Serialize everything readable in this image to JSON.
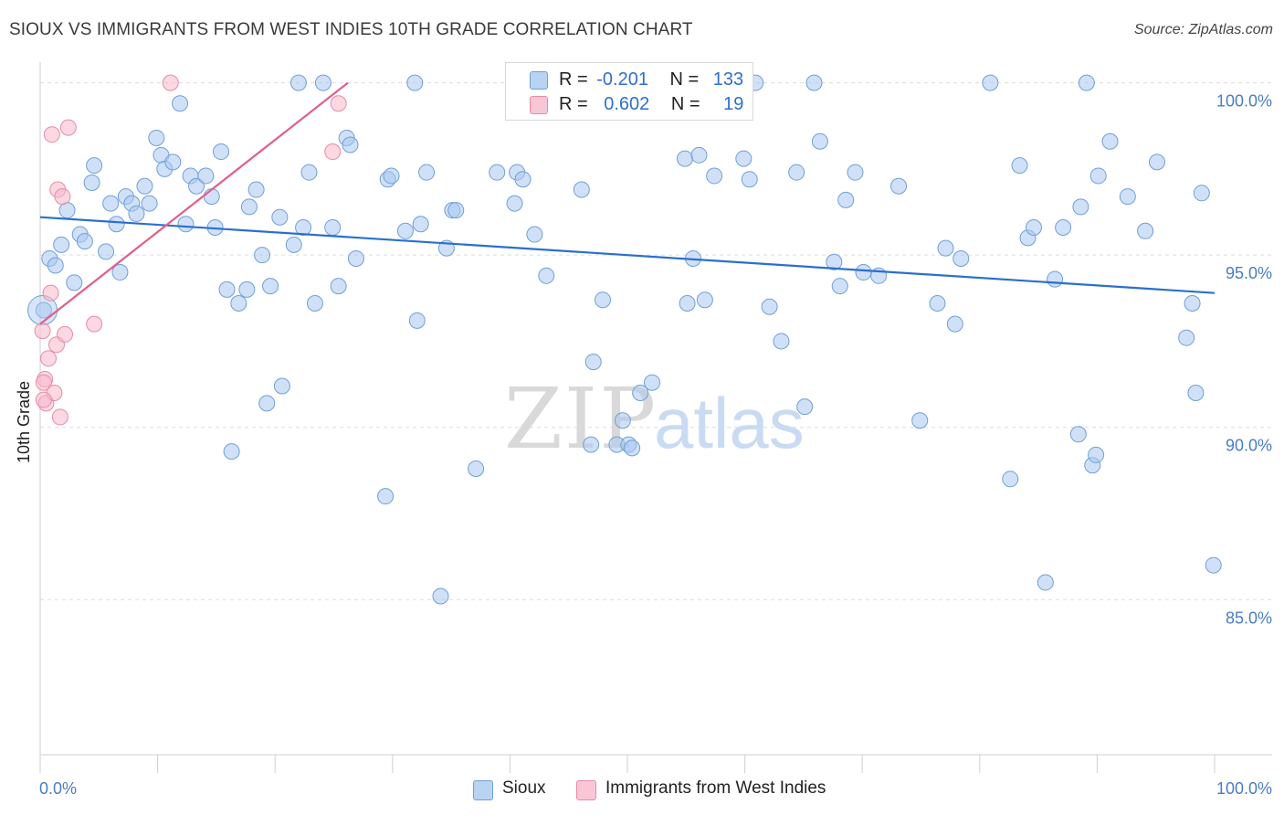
{
  "title": "SIOUX VS IMMIGRANTS FROM WEST INDIES 10TH GRADE CORRELATION CHART",
  "source": "Source: ZipAtlas.com",
  "watermark": {
    "zip": "ZIP",
    "atlas": "atlas"
  },
  "legend": {
    "sioux": {
      "r_label": "R =",
      "r_value": "-0.201",
      "n_label": "N =",
      "n_value": "133"
    },
    "westindies": {
      "r_label": "R =",
      "r_value": "0.602",
      "n_label": "N =",
      "n_value": "19"
    }
  },
  "bottom_legend": {
    "sioux": "Sioux",
    "westindies": "Immigrants from West Indies"
  },
  "colors": {
    "sioux_fill": "#a9c8f0",
    "sioux_stroke": "#6f9fd8",
    "sioux_line": "#2a6fcf",
    "wi_fill": "#f7b8cb",
    "wi_stroke": "#e88aa8",
    "wi_line": "#e0608a",
    "tick_text": "#4a7cc7",
    "grid": "#dcdcdc"
  },
  "chart_data": {
    "type": "scatter",
    "title": "SIOUX VS IMMIGRANTS FROM WEST INDIES 10TH GRADE CORRELATION CHART",
    "xlabel": "",
    "ylabel": "10th Grade",
    "xlim": [
      0,
      100
    ],
    "ylim": [
      80.5,
      100.6
    ],
    "x_tick_labels": [
      "0.0%",
      "100.0%"
    ],
    "y_ticks": [
      100,
      95,
      90,
      85
    ],
    "y_tick_labels": [
      "100.0%",
      "95.0%",
      "90.0%",
      "85.0%"
    ],
    "grid": true,
    "legend_position": "top-center",
    "series": [
      {
        "name": "Sioux",
        "points": [
          [
            0.3,
            93.4
          ],
          [
            0.8,
            94.9
          ],
          [
            1.3,
            94.7
          ],
          [
            1.8,
            95.3
          ],
          [
            2.3,
            96.3
          ],
          [
            2.9,
            94.2
          ],
          [
            3.4,
            95.6
          ],
          [
            3.8,
            95.4
          ],
          [
            4.4,
            97.1
          ],
          [
            4.6,
            97.6
          ],
          [
            5.6,
            95.1
          ],
          [
            6.0,
            96.5
          ],
          [
            6.5,
            95.9
          ],
          [
            6.8,
            94.5
          ],
          [
            7.3,
            96.7
          ],
          [
            7.8,
            96.5
          ],
          [
            8.2,
            96.2
          ],
          [
            8.9,
            97.0
          ],
          [
            9.3,
            96.5
          ],
          [
            9.9,
            98.4
          ],
          [
            10.3,
            97.9
          ],
          [
            10.6,
            97.5
          ],
          [
            11.3,
            97.7
          ],
          [
            11.9,
            99.4
          ],
          [
            12.4,
            95.9
          ],
          [
            12.8,
            97.3
          ],
          [
            13.3,
            97.0
          ],
          [
            14.1,
            97.3
          ],
          [
            14.6,
            96.7
          ],
          [
            14.9,
            95.8
          ],
          [
            15.4,
            98.0
          ],
          [
            15.9,
            94.0
          ],
          [
            16.3,
            89.3
          ],
          [
            16.9,
            93.6
          ],
          [
            17.6,
            94.0
          ],
          [
            17.8,
            96.4
          ],
          [
            18.4,
            96.9
          ],
          [
            18.9,
            95.0
          ],
          [
            19.3,
            90.7
          ],
          [
            19.6,
            94.1
          ],
          [
            20.4,
            96.1
          ],
          [
            20.6,
            91.2
          ],
          [
            21.6,
            95.3
          ],
          [
            22.0,
            100.0
          ],
          [
            22.4,
            95.8
          ],
          [
            22.9,
            97.4
          ],
          [
            23.4,
            93.6
          ],
          [
            24.1,
            100.0
          ],
          [
            24.9,
            95.8
          ],
          [
            25.4,
            94.1
          ],
          [
            26.1,
            98.4
          ],
          [
            26.4,
            98.2
          ],
          [
            26.9,
            94.9
          ],
          [
            29.4,
            88.0
          ],
          [
            29.6,
            97.2
          ],
          [
            29.9,
            97.3
          ],
          [
            31.1,
            95.7
          ],
          [
            31.9,
            100.0
          ],
          [
            32.1,
            93.1
          ],
          [
            32.4,
            95.9
          ],
          [
            32.9,
            97.4
          ],
          [
            34.1,
            85.1
          ],
          [
            34.6,
            95.2
          ],
          [
            35.1,
            96.3
          ],
          [
            35.4,
            96.3
          ],
          [
            37.1,
            88.8
          ],
          [
            38.9,
            97.4
          ],
          [
            40.4,
            96.5
          ],
          [
            40.6,
            97.4
          ],
          [
            41.1,
            97.2
          ],
          [
            42.1,
            95.6
          ],
          [
            43.1,
            94.4
          ],
          [
            45.4,
            100.0
          ],
          [
            46.1,
            96.9
          ],
          [
            46.9,
            89.5
          ],
          [
            47.1,
            91.9
          ],
          [
            47.9,
            93.7
          ],
          [
            48.4,
            100.0
          ],
          [
            49.1,
            89.5
          ],
          [
            49.6,
            90.2
          ],
          [
            50.1,
            89.5
          ],
          [
            50.4,
            89.4
          ],
          [
            51.1,
            91.0
          ],
          [
            52.1,
            91.3
          ],
          [
            54.9,
            97.8
          ],
          [
            55.1,
            93.6
          ],
          [
            55.6,
            94.9
          ],
          [
            56.1,
            97.9
          ],
          [
            56.6,
            93.7
          ],
          [
            57.4,
            97.3
          ],
          [
            59.9,
            97.8
          ],
          [
            60.4,
            97.2
          ],
          [
            60.9,
            100.0
          ],
          [
            62.1,
            93.5
          ],
          [
            63.1,
            92.5
          ],
          [
            64.4,
            97.4
          ],
          [
            65.1,
            90.6
          ],
          [
            65.9,
            100.0
          ],
          [
            66.4,
            98.3
          ],
          [
            67.6,
            94.8
          ],
          [
            68.1,
            94.1
          ],
          [
            68.6,
            96.6
          ],
          [
            69.4,
            97.4
          ],
          [
            70.1,
            94.5
          ],
          [
            71.4,
            94.4
          ],
          [
            73.1,
            97.0
          ],
          [
            74.9,
            90.2
          ],
          [
            76.4,
            93.6
          ],
          [
            77.1,
            95.2
          ],
          [
            77.9,
            93.0
          ],
          [
            78.4,
            94.9
          ],
          [
            80.9,
            100.0
          ],
          [
            82.6,
            88.5
          ],
          [
            83.4,
            97.6
          ],
          [
            84.1,
            95.5
          ],
          [
            84.6,
            95.8
          ],
          [
            85.6,
            85.5
          ],
          [
            86.4,
            94.3
          ],
          [
            87.1,
            95.8
          ],
          [
            88.4,
            89.8
          ],
          [
            88.6,
            96.4
          ],
          [
            89.1,
            100.0
          ],
          [
            89.6,
            88.9
          ],
          [
            89.9,
            89.2
          ],
          [
            90.1,
            97.3
          ],
          [
            91.1,
            98.3
          ],
          [
            92.6,
            96.7
          ],
          [
            94.1,
            95.7
          ],
          [
            95.1,
            97.7
          ],
          [
            97.6,
            92.6
          ],
          [
            98.1,
            93.6
          ],
          [
            98.4,
            91.0
          ],
          [
            98.9,
            96.8
          ],
          [
            99.9,
            86.0
          ]
        ]
      },
      {
        "name": "Immigrants from West Indies",
        "points": [
          [
            0.2,
            92.8
          ],
          [
            0.4,
            91.4
          ],
          [
            0.3,
            91.3
          ],
          [
            0.5,
            90.7
          ],
          [
            0.7,
            92.0
          ],
          [
            0.9,
            93.9
          ],
          [
            1.0,
            98.5
          ],
          [
            1.2,
            91.0
          ],
          [
            1.4,
            92.4
          ],
          [
            1.5,
            96.9
          ],
          [
            1.7,
            90.3
          ],
          [
            1.9,
            96.7
          ],
          [
            2.1,
            92.7
          ],
          [
            2.4,
            98.7
          ],
          [
            4.6,
            93.0
          ],
          [
            11.1,
            100.0
          ],
          [
            24.9,
            98.0
          ],
          [
            25.4,
            99.4
          ],
          [
            0.3,
            90.8
          ]
        ]
      }
    ],
    "trend_lines": [
      {
        "series": "Sioux",
        "x": [
          0,
          100
        ],
        "y": [
          96.1,
          93.9
        ]
      },
      {
        "series": "Immigrants from West Indies",
        "x": [
          0,
          26.2
        ],
        "y": [
          93.0,
          100.0
        ]
      }
    ]
  }
}
